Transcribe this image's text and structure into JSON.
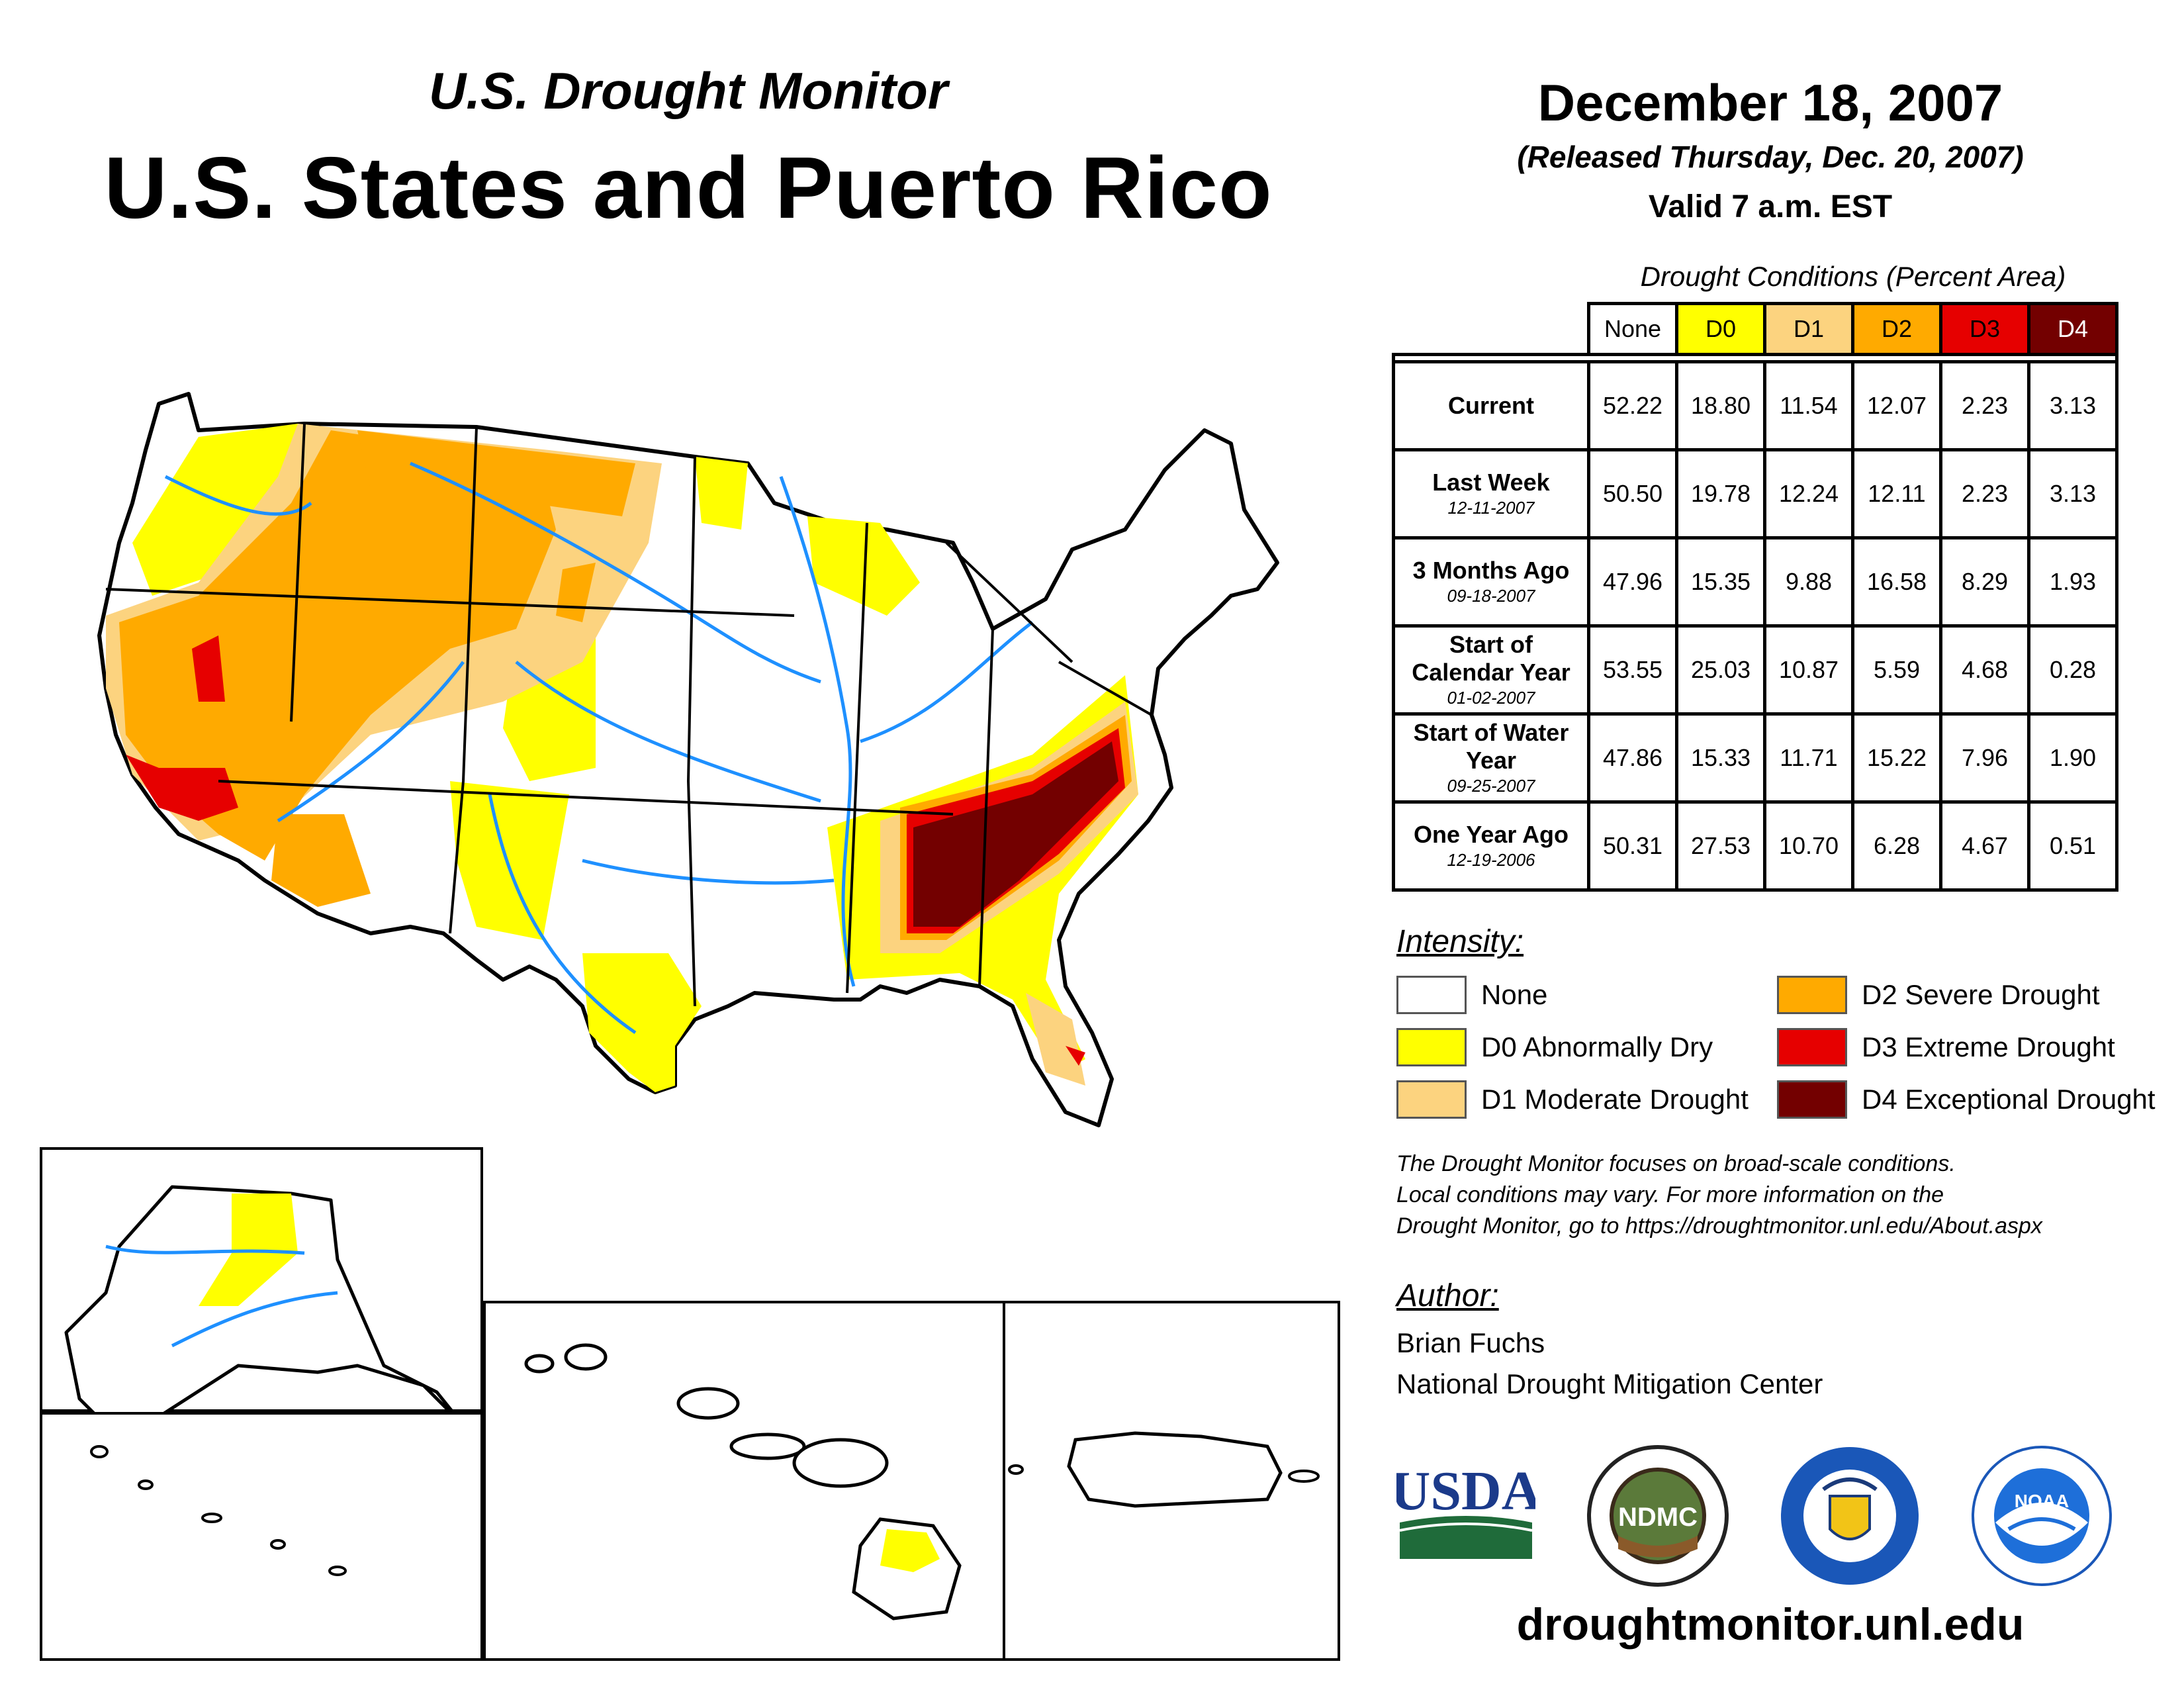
{
  "header": {
    "subtitle": "U.S. Drought Monitor",
    "title": "U.S. States and Puerto Rico",
    "date": "December 18, 2007",
    "released": "(Released Thursday, Dec. 20, 2007)",
    "valid": "Valid 7 a.m. EST"
  },
  "table": {
    "caption": "Drought Conditions (Percent Area)",
    "columns": [
      "None",
      "D0",
      "D1",
      "D2",
      "D3",
      "D4"
    ],
    "column_colors": [
      "#ffffff",
      "#ffff00",
      "#fcd37f",
      "#ffaa00",
      "#e60000",
      "#730000"
    ],
    "rows": [
      {
        "label": "Current",
        "date": "",
        "values": [
          "52.22",
          "18.80",
          "11.54",
          "12.07",
          "2.23",
          "3.13"
        ]
      },
      {
        "label": "Last Week",
        "date": "12-11-2007",
        "values": [
          "50.50",
          "19.78",
          "12.24",
          "12.11",
          "2.23",
          "3.13"
        ]
      },
      {
        "label": "3 Months Ago",
        "date": "09-18-2007",
        "values": [
          "47.96",
          "15.35",
          "9.88",
          "16.58",
          "8.29",
          "1.93"
        ]
      },
      {
        "label": "Start of Calendar Year",
        "date": "01-02-2007",
        "values": [
          "53.55",
          "25.03",
          "10.87",
          "5.59",
          "4.68",
          "0.28"
        ]
      },
      {
        "label": "Start of Water Year",
        "date": "09-25-2007",
        "values": [
          "47.86",
          "15.33",
          "11.71",
          "15.22",
          "7.96",
          "1.90"
        ]
      },
      {
        "label": "One Year Ago",
        "date": "12-19-2006",
        "values": [
          "50.31",
          "27.53",
          "10.70",
          "6.28",
          "4.67",
          "0.51"
        ]
      }
    ]
  },
  "intensity": {
    "title": "Intensity:",
    "items": [
      {
        "label": "None",
        "color": "#ffffff"
      },
      {
        "label": "D0 Abnormally Dry",
        "color": "#ffff00"
      },
      {
        "label": "D1 Moderate Drought",
        "color": "#fcd37f"
      },
      {
        "label": "D2 Severe Drought",
        "color": "#ffaa00"
      },
      {
        "label": "D3 Extreme Drought",
        "color": "#e60000"
      },
      {
        "label": "D4 Exceptional Drought",
        "color": "#730000"
      }
    ]
  },
  "note": {
    "line1": "The Drought Monitor focuses on broad-scale conditions.",
    "line2": "Local conditions may vary. For more information on the",
    "line3": "Drought Monitor, go to https://droughtmonitor.unl.edu/About.aspx"
  },
  "author": {
    "title": "Author:",
    "name": "Brian Fuchs",
    "org": "National Drought Mitigation Center"
  },
  "logos": {
    "usda": "USDA",
    "ndmc": "NDMC",
    "noaa": "NOAA"
  },
  "footer_url": "droughtmonitor.unl.edu"
}
